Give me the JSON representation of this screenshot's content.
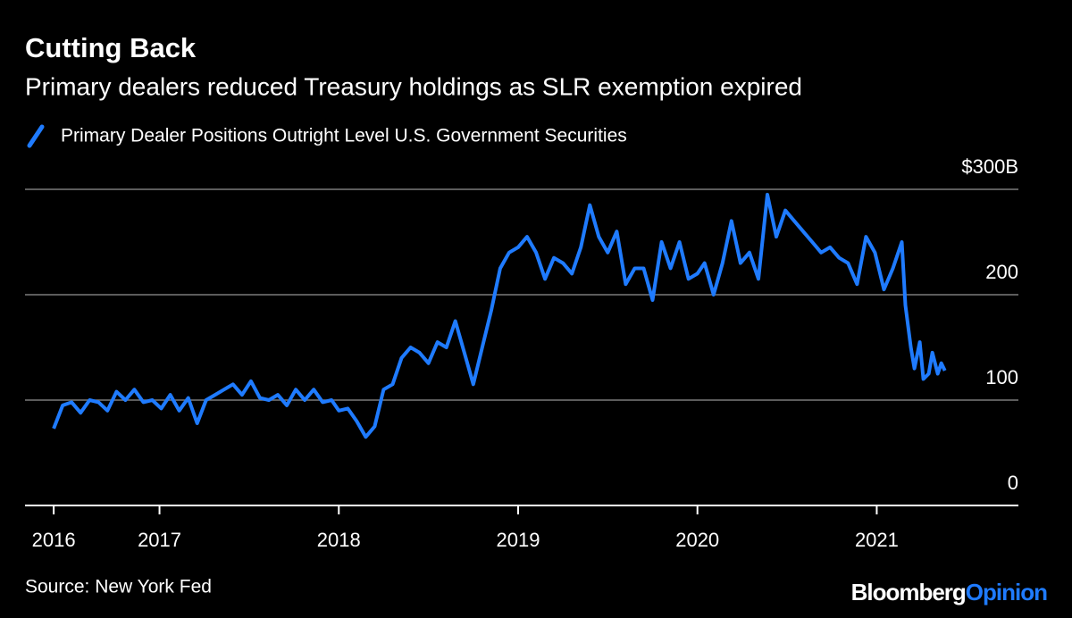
{
  "chart_data": {
    "type": "line",
    "title": "Cutting Back",
    "subtitle": "Primary dealers reduced Treasury holdings as SLR exemption expired",
    "source": "Source: New York Fed",
    "brand": [
      "Bloomberg",
      "Opinion"
    ],
    "x": [
      2016.41,
      2016.46,
      2016.51,
      2016.56,
      2016.61,
      2016.66,
      2016.71,
      2016.76,
      2016.81,
      2016.86,
      2016.91,
      2016.96,
      2017.01,
      2017.06,
      2017.11,
      2017.16,
      2017.21,
      2017.26,
      2017.31,
      2017.36,
      2017.41,
      2017.46,
      2017.51,
      2017.56,
      2017.61,
      2017.66,
      2017.71,
      2017.76,
      2017.81,
      2017.86,
      2017.91,
      2017.96,
      2018.0,
      2018.05,
      2018.1,
      2018.15,
      2018.2,
      2018.25,
      2018.3,
      2018.35,
      2018.4,
      2018.45,
      2018.5,
      2018.55,
      2018.6,
      2018.65,
      2018.7,
      2018.75,
      2018.8,
      2018.85,
      2018.9,
      2018.95,
      2019.0,
      2019.05,
      2019.1,
      2019.15,
      2019.2,
      2019.25,
      2019.3,
      2019.35,
      2019.4,
      2019.45,
      2019.5,
      2019.55,
      2019.6,
      2019.65,
      2019.7,
      2019.75,
      2019.8,
      2019.85,
      2019.9,
      2019.95,
      2020.0,
      2020.04,
      2020.09,
      2020.14,
      2020.19,
      2020.24,
      2020.29,
      2020.34,
      2020.39,
      2020.44,
      2020.49,
      2020.54,
      2020.59,
      2020.64,
      2020.69,
      2020.74,
      2020.79,
      2020.84,
      2020.89,
      2020.94,
      2020.99,
      2021.04,
      2021.09,
      2021.14,
      2021.16,
      2021.19,
      2021.21,
      2021.24,
      2021.26,
      2021.29,
      2021.31,
      2021.34,
      2021.36,
      2021.38
    ],
    "series": [
      {
        "name": "Primary Dealer Positions Outright Level U.S. Government Securities",
        "color": "#1f7bff",
        "values": [
          73,
          95,
          98,
          88,
          100,
          98,
          90,
          108,
          100,
          110,
          98,
          100,
          92,
          105,
          90,
          102,
          78,
          100,
          105,
          110,
          115,
          105,
          118,
          102,
          100,
          105,
          95,
          110,
          100,
          110,
          98,
          100,
          90,
          92,
          80,
          65,
          75,
          110,
          115,
          140,
          150,
          145,
          135,
          155,
          150,
          175,
          145,
          115,
          150,
          185,
          225,
          240,
          245,
          255,
          240,
          215,
          235,
          230,
          220,
          245,
          285,
          255,
          240,
          260,
          210,
          225,
          225,
          195,
          250,
          225,
          250,
          215,
          220,
          230,
          200,
          230,
          270,
          230,
          240,
          215,
          295,
          255,
          280,
          270,
          260,
          250,
          240,
          245,
          235,
          230,
          210,
          255,
          240,
          205,
          225,
          250,
          190,
          150,
          130,
          155,
          120,
          125,
          145,
          125,
          135,
          128
        ]
      }
    ],
    "xlim": [
      2016.25,
      2021.79
    ],
    "xticks": [
      {
        "value": 2016.41,
        "label": "2016"
      },
      2017,
      2018,
      2019,
      2020,
      2021
    ],
    "ylim": [
      0,
      300
    ],
    "yticks": [
      0,
      100,
      200,
      {
        "value": 300,
        "label": "$300B"
      }
    ],
    "grid": true
  }
}
